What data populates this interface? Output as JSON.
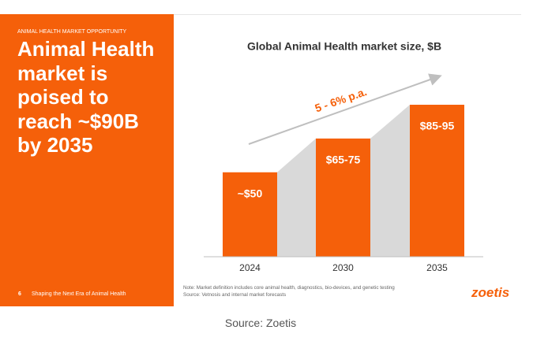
{
  "slide": {
    "kicker": "ANIMAL HEALTH MARKET OPPORTUNITY",
    "headline": "Animal Health market is poised to reach ~$90B by 2035",
    "page_number": "6",
    "footer": "Shaping the Next Era of Animal Health",
    "note": "Note: Market definition includes core animal health, diagnostics, bio-devices, and genetic testing",
    "source": "Source: Vetnosis and internal market forecasts",
    "logo": "zoetis"
  },
  "caption": "Source: Zoetis",
  "chart_data": {
    "type": "bar",
    "title": "Global Animal Health market size, $B",
    "categories": [
      "2024",
      "2030",
      "2035"
    ],
    "values": [
      50,
      70,
      90
    ],
    "value_labels": [
      "~$50",
      "$65-75",
      "$85-95"
    ],
    "color": "#f5600a",
    "connector_color": "#d9d9d9",
    "annotation": "5 - 6% p.a."
  }
}
